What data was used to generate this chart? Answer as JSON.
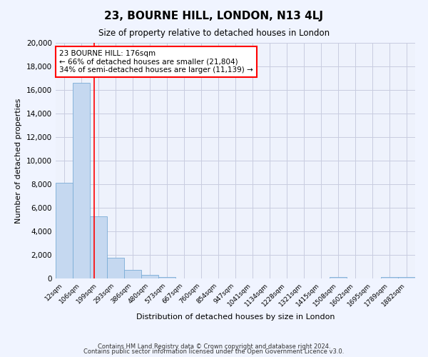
{
  "title": "23, BOURNE HILL, LONDON, N13 4LJ",
  "subtitle": "Size of property relative to detached houses in London",
  "xlabel": "Distribution of detached houses by size in London",
  "ylabel": "Number of detached properties",
  "bar_labels": [
    "12sqm",
    "106sqm",
    "199sqm",
    "293sqm",
    "386sqm",
    "480sqm",
    "573sqm",
    "667sqm",
    "760sqm",
    "854sqm",
    "947sqm",
    "1041sqm",
    "1134sqm",
    "1228sqm",
    "1321sqm",
    "1415sqm",
    "1508sqm",
    "1602sqm",
    "1695sqm",
    "1789sqm",
    "1882sqm"
  ],
  "bar_values": [
    8100,
    16600,
    5300,
    1750,
    750,
    300,
    150,
    0,
    0,
    0,
    0,
    0,
    0,
    0,
    0,
    0,
    150,
    0,
    0,
    150,
    150
  ],
  "bar_color": "#c5d8f0",
  "bar_edge_color": "#7aacd6",
  "ylim": [
    0,
    20000
  ],
  "yticks": [
    0,
    2000,
    4000,
    6000,
    8000,
    10000,
    12000,
    14000,
    16000,
    18000,
    20000
  ],
  "red_line_x": 1.76,
  "annotation_title": "23 BOURNE HILL: 176sqm",
  "annotation_line1": "← 66% of detached houses are smaller (21,804)",
  "annotation_line2": "34% of semi-detached houses are larger (11,139) →",
  "footer1": "Contains HM Land Registry data © Crown copyright and database right 2024.",
  "footer2": "Contains public sector information licensed under the Open Government Licence v3.0.",
  "bg_color": "#f0f4ff",
  "plot_bg_color": "#eef2fc",
  "grid_color": "#c8cce0"
}
